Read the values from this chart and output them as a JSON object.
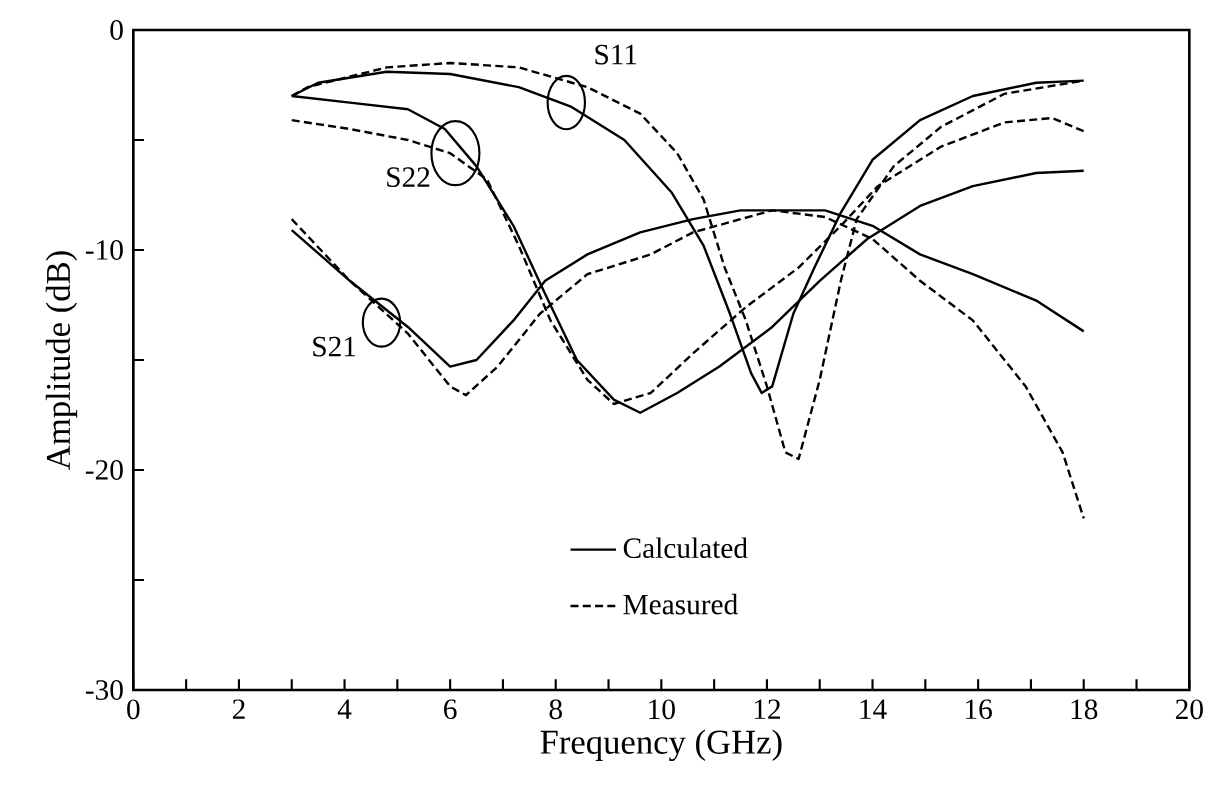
{
  "chart_data": {
    "type": "line",
    "xlabel": "Frequency (GHz)",
    "ylabel": "Amplitude (dB)",
    "xlim": [
      0,
      20
    ],
    "ylim": [
      -30,
      0
    ],
    "xticks": [
      0,
      {
        "value": 1,
        "label": null
      },
      2,
      {
        "value": 3,
        "label": null
      },
      4,
      {
        "value": 5,
        "label": null
      },
      6,
      {
        "value": 7,
        "label": null
      },
      8,
      {
        "value": 9,
        "label": null
      },
      10,
      {
        "value": 11,
        "label": null
      },
      12,
      {
        "value": 13,
        "label": null
      },
      14,
      {
        "value": 15,
        "label": null
      },
      16,
      {
        "value": 17,
        "label": null
      },
      18,
      {
        "value": 19,
        "label": null
      },
      20
    ],
    "yticks": [
      -30,
      {
        "value": -25,
        "label": null
      },
      -20,
      {
        "value": -15,
        "label": null
      },
      -10,
      {
        "value": -5,
        "label": null
      },
      0
    ],
    "grid": false,
    "legend": "bottom",
    "marker": "none",
    "annotations": [
      {
        "text": "S11",
        "x": 8.2,
        "y": -3.3
      },
      {
        "text": "S22",
        "x": 6.1,
        "y": -5.6
      },
      {
        "text": "S21",
        "x": 4.7,
        "y": -13.3
      }
    ],
    "series": [
      {
        "name": "Calculated",
        "color": "#000000",
        "line_style": "solid",
        "x": [
          3,
          3.5,
          4.8,
          6,
          7.3,
          8.3,
          9.3,
          10.2,
          10.8,
          11.3,
          11.7,
          11.9,
          12.1,
          12.5,
          12.9,
          13.4,
          14,
          14.9,
          15.9,
          17.1,
          18
        ],
        "values": [
          -3.0,
          -2.4,
          -1.9,
          -2.0,
          -2.6,
          -3.5,
          -5.0,
          -7.4,
          -9.8,
          -12.9,
          -15.6,
          -16.5,
          -16.2,
          -12.9,
          -10.8,
          -8.3,
          -5.9,
          -4.1,
          -3.0,
          -2.4,
          -2.3
        ]
      },
      {
        "name": "Measured",
        "color": "#000000",
        "line_style": "dashed",
        "x": [
          3,
          3.3,
          4.8,
          6,
          7.3,
          8.6,
          9.6,
          10.3,
          10.8,
          11.2,
          11.6,
          12,
          12.35,
          12.6,
          13,
          13.4,
          13.7,
          14.4,
          15.3,
          16.5,
          18
        ],
        "values": [
          -3.0,
          -2.6,
          -1.7,
          -1.5,
          -1.7,
          -2.6,
          -3.8,
          -5.6,
          -7.7,
          -10.8,
          -13.2,
          -16.2,
          -19.2,
          -19.5,
          -15.9,
          -11.4,
          -8.6,
          -6.2,
          -4.4,
          -2.9,
          -2.3
        ]
      },
      {
        "color": "#000000",
        "line_style": "solid",
        "x": [
          3,
          4.1,
          5.2,
          5.9,
          6.5,
          7.2,
          7.8,
          8.4,
          9.1,
          9.6,
          10.3,
          11.1,
          12.1,
          13,
          13.9,
          14.9,
          15.9,
          17.1,
          18
        ],
        "values": [
          -3.0,
          -3.3,
          -3.6,
          -4.5,
          -6.2,
          -8.9,
          -12.0,
          -15.0,
          -16.8,
          -17.4,
          -16.5,
          -15.3,
          -13.5,
          -11.4,
          -9.5,
          -8.0,
          -7.1,
          -6.5,
          -6.4
        ]
      },
      {
        "color": "#000000",
        "line_style": "dashed",
        "x": [
          3,
          4.1,
          5.2,
          6,
          6.7,
          7.3,
          7.9,
          8.6,
          9.1,
          9.8,
          10.6,
          11.6,
          12.6,
          13.4,
          14.1,
          15.3,
          16.5,
          17.4,
          18
        ],
        "values": [
          -4.1,
          -4.5,
          -5.0,
          -5.6,
          -6.8,
          -9.8,
          -13.2,
          -15.9,
          -17.0,
          -16.5,
          -14.7,
          -12.6,
          -10.8,
          -8.9,
          -7.1,
          -5.3,
          -4.2,
          -4.0,
          -4.6
        ]
      },
      {
        "color": "#000000",
        "line_style": "solid",
        "x": [
          3,
          4.1,
          5.2,
          6,
          6.5,
          7.2,
          7.8,
          8.6,
          9.6,
          10.6,
          11.5,
          13.1,
          14,
          14.9,
          15.9,
          17.1,
          18
        ],
        "values": [
          -9.1,
          -11.4,
          -13.5,
          -15.3,
          -15.0,
          -13.2,
          -11.4,
          -10.2,
          -9.2,
          -8.6,
          -8.2,
          -8.2,
          -8.9,
          -10.2,
          -11.1,
          -12.3,
          -13.7
        ]
      },
      {
        "color": "#000000",
        "line_style": "dashed",
        "x": [
          3,
          4.1,
          5.2,
          6,
          6.3,
          6.9,
          7.7,
          8.6,
          9.8,
          10.6,
          11.5,
          12.1,
          13.1,
          14,
          14.9,
          15.9,
          16.9,
          17.6,
          18
        ],
        "values": [
          -8.6,
          -11.4,
          -13.8,
          -16.2,
          -16.6,
          -15.3,
          -12.9,
          -11.1,
          -10.2,
          -9.2,
          -8.6,
          -8.2,
          -8.5,
          -9.5,
          -11.4,
          -13.2,
          -16.2,
          -19.2,
          -22.2
        ]
      }
    ]
  }
}
